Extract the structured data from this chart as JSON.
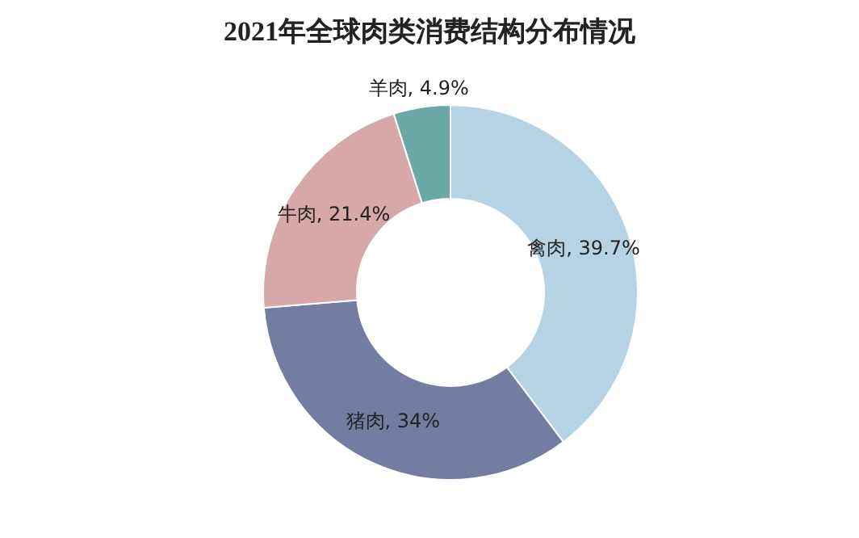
{
  "chart_data": {
    "type": "donut",
    "title": "2021年全球肉类消费结构分布情况",
    "categories": [
      "禽肉",
      "猪肉",
      "牛肉",
      "羊肉"
    ],
    "values": [
      39.7,
      34,
      21.4,
      4.9
    ],
    "value_labels": [
      "39.7%",
      "34%",
      "21.4%",
      "4.9%"
    ],
    "colors": [
      "#b5d3e5",
      "#737ca1",
      "#d6a8a9",
      "#6aa9a6"
    ],
    "legend": false
  }
}
